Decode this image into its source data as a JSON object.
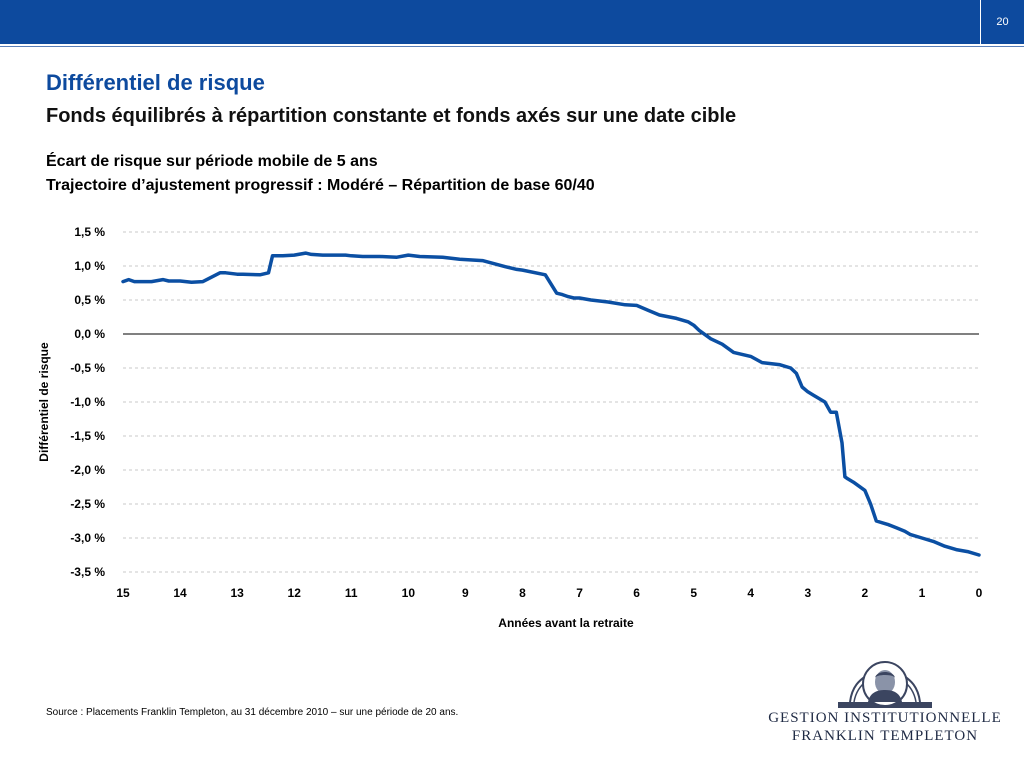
{
  "page_number": "20",
  "title": "Différentiel de risque",
  "subtitle": "Fonds équilibrés à répartition constante et fonds axés sur une date cible",
  "chart_title_line1": "Écart de risque sur période mobile de 5 ans",
  "chart_title_line2": "Trajectoire d’ajustement progressif : Modéré – Répartition de base 60/40",
  "source": "Source : Placements Franklin Templeton, au 31 décembre 2010 – sur une période de 20 ans.",
  "logo": {
    "line1": "GESTION INSTITUTIONNELLE",
    "line2": "FRANKLIN TEMPLETON"
  },
  "colors": {
    "brand_blue": "#0d4a9e",
    "line": "#0b4fa3",
    "grid": "#c8c8c8"
  },
  "chart_data": {
    "type": "line",
    "title": "Écart de risque sur période mobile de 5 ans",
    "xlabel": "Années avant la retraite",
    "ylabel": "Différentiel de risque",
    "x_direction": "descending",
    "xlim": [
      15,
      0
    ],
    "ylim": [
      -3.5,
      1.5
    ],
    "grid": "horizontal dashed",
    "xticks": [
      15,
      14,
      13,
      12,
      11,
      10,
      9,
      8,
      7,
      6,
      5,
      4,
      3,
      2,
      1,
      0
    ],
    "xtick_labels": [
      "15",
      "14",
      "13",
      "12",
      "11",
      "10",
      "9",
      "8",
      "7",
      "6",
      "5",
      "4",
      "3",
      "2",
      "1",
      "0"
    ],
    "yticks": [
      1.5,
      1.0,
      0.5,
      0.0,
      -0.5,
      -1.0,
      -1.5,
      -2.0,
      -2.5,
      -3.0,
      -3.5
    ],
    "ytick_labels": [
      "1,5 %",
      "1,0 %",
      "0,5 %",
      "0,0 %",
      "-0,5 %",
      "-1,0 %",
      "-1,5 %",
      "-2,0 %",
      "-2,5 %",
      "-3,0 %",
      "-3,5 %"
    ],
    "series": [
      {
        "x": [
          15,
          14.9,
          14.8,
          14.5,
          14.3,
          14.2,
          14.0,
          13.8,
          13.6,
          13.3,
          13.2,
          13.0,
          12.9,
          12.6,
          12.45,
          12.38,
          12.2,
          12.0,
          11.8,
          11.7,
          11.5,
          11.1,
          11.0,
          10.8,
          10.5,
          10.2,
          10.0,
          9.8,
          9.4,
          9.1,
          8.7,
          8.3,
          8.1,
          8.0,
          7.6,
          7.4,
          7.3,
          7.2,
          7.1,
          7.0,
          6.8,
          6.5,
          6.2,
          6.0,
          5.8,
          5.6,
          5.3,
          5.1,
          5.0,
          4.9,
          4.7,
          4.5,
          4.3,
          4.0,
          3.8,
          3.5,
          3.3,
          3.2,
          3.1,
          3.0,
          2.9,
          2.7,
          2.6,
          2.5,
          2.4,
          2.35,
          2.3,
          2.2,
          2.0,
          1.9,
          1.8,
          1.6,
          1.45,
          1.3,
          1.2,
          1.0,
          0.8,
          0.6,
          0.4,
          0.2,
          0.0
        ],
        "y": [
          0.77,
          0.8,
          0.77,
          0.77,
          0.8,
          0.78,
          0.78,
          0.76,
          0.77,
          0.9,
          0.9,
          0.88,
          0.88,
          0.87,
          0.9,
          1.15,
          1.15,
          1.16,
          1.19,
          1.17,
          1.16,
          1.16,
          1.15,
          1.14,
          1.14,
          1.13,
          1.16,
          1.14,
          1.13,
          1.1,
          1.08,
          0.99,
          0.95,
          0.94,
          0.87,
          0.6,
          0.58,
          0.55,
          0.53,
          0.53,
          0.5,
          0.47,
          0.43,
          0.42,
          0.35,
          0.28,
          0.23,
          0.18,
          0.13,
          0.05,
          -0.07,
          -0.15,
          -0.27,
          -0.33,
          -0.42,
          -0.45,
          -0.5,
          -0.58,
          -0.78,
          -0.85,
          -0.9,
          -1.0,
          -1.15,
          -1.15,
          -1.6,
          -2.1,
          -2.13,
          -2.18,
          -2.3,
          -2.5,
          -2.75,
          -2.8,
          -2.85,
          -2.9,
          -2.95,
          -3.0,
          -3.05,
          -3.12,
          -3.17,
          -3.2,
          -3.25
        ]
      }
    ]
  }
}
